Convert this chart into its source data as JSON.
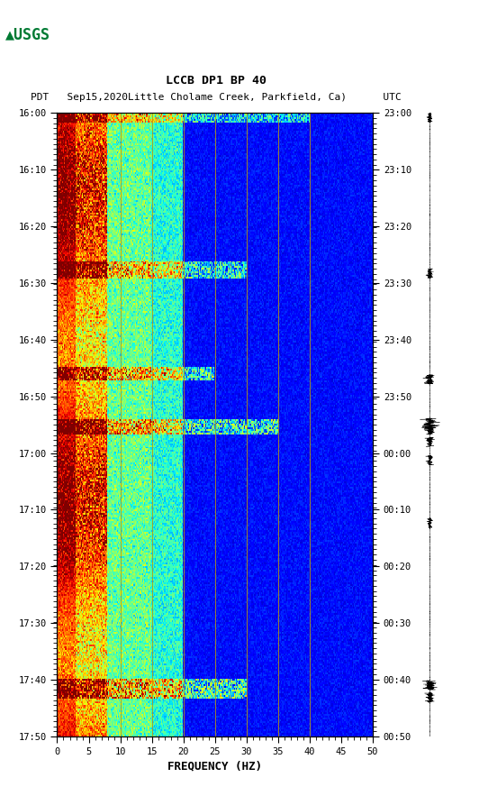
{
  "title_line1": "LCCB DP1 BP 40",
  "title_line2": "PDT   Sep15,2020Little Cholame Creek, Parkfield, Ca)      UTC",
  "xlabel": "FREQUENCY (HZ)",
  "freq_min": 0,
  "freq_max": 50,
  "freq_ticks": [
    0,
    5,
    10,
    15,
    20,
    25,
    30,
    35,
    40,
    45,
    50
  ],
  "time_labels_left": [
    "16:00",
    "16:10",
    "16:20",
    "16:30",
    "16:40",
    "16:50",
    "17:00",
    "17:10",
    "17:20",
    "17:30",
    "17:40",
    "17:50"
  ],
  "time_labels_right": [
    "23:00",
    "23:10",
    "23:20",
    "23:30",
    "23:40",
    "23:50",
    "00:00",
    "00:10",
    "00:20",
    "00:30",
    "00:40",
    "00:50"
  ],
  "n_time_steps": 360,
  "n_freq_steps": 300,
  "background_color": "#ffffff",
  "colormap": "jet",
  "vertical_lines_freq": [
    10,
    15,
    20,
    25,
    30,
    35,
    40
  ],
  "fig_width": 5.52,
  "fig_height": 8.93,
  "logo_color": "#007a33"
}
